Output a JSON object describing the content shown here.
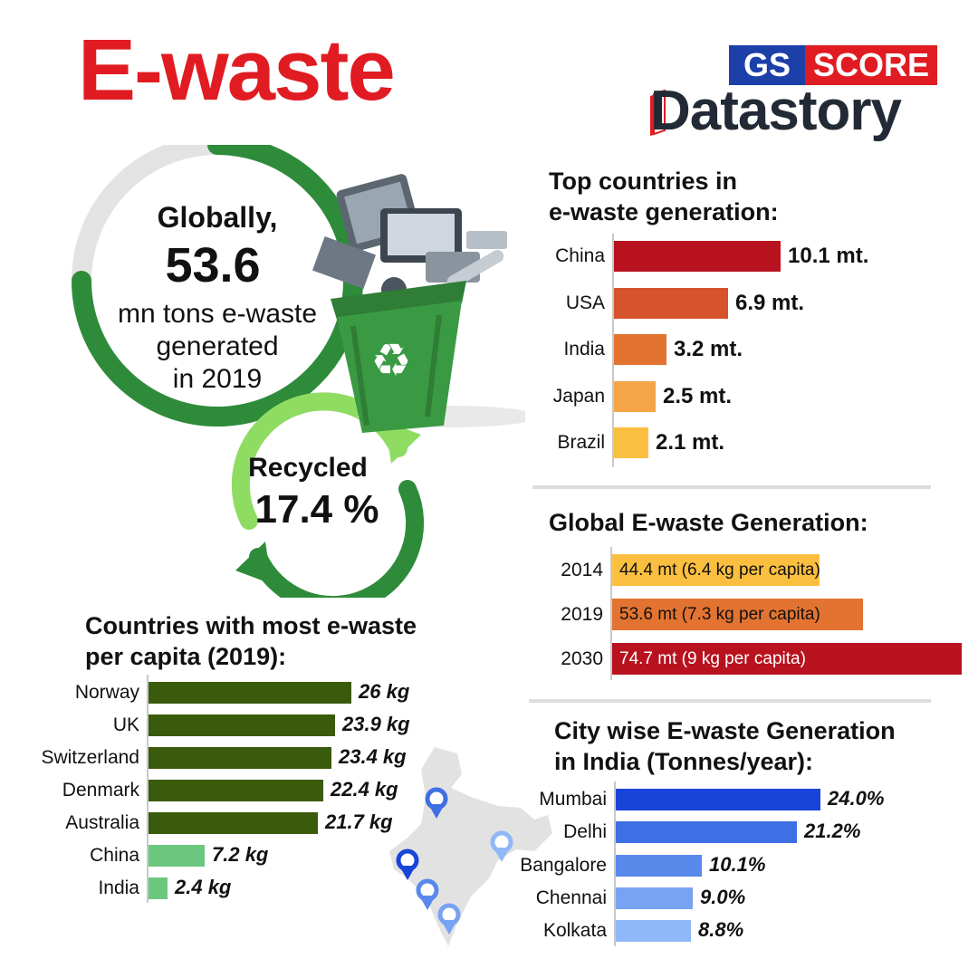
{
  "title": "E-waste",
  "logo": {
    "gs": "GS",
    "score": "SCORE",
    "datastory": "Datastory"
  },
  "colors": {
    "title_red": "#e11b22",
    "green_dark": "#2e8b3a",
    "green_light": "#8fdc63",
    "bin_green": "#3a9a43"
  },
  "global_summary": {
    "line_globally": "Globally,",
    "total": "53.6",
    "line_1": "mn tons e-waste",
    "line_2": "generated",
    "line_3": "in 2019",
    "recycled_label": "Recycled",
    "recycled_value": "17.4 %",
    "recycled_share": 0.174
  },
  "chart_data": [
    {
      "id": "top_countries",
      "type": "bar",
      "orientation": "horizontal",
      "title_line1": "Top countries in",
      "title_line2": "e-waste generation:",
      "categories": [
        "China",
        "USA",
        "India",
        "Japan",
        "Brazil"
      ],
      "values": [
        10.1,
        6.9,
        3.2,
        2.5,
        2.1
      ],
      "value_labels": [
        "10.1 mt.",
        "6.9 mt.",
        "3.2 mt.",
        "2.5 mt.",
        "2.1 mt."
      ],
      "colors": [
        "#b8121f",
        "#d6532c",
        "#e37330",
        "#f3a548",
        "#fbbf3f"
      ]
    },
    {
      "id": "global_generation",
      "type": "bar",
      "orientation": "horizontal",
      "title": "Global E-waste Generation:",
      "categories": [
        "2014",
        "2019",
        "2030"
      ],
      "values": [
        44.4,
        53.6,
        74.7
      ],
      "value_labels": [
        "44.4 mt (6.4 kg per capita)",
        "53.6 mt (7.3 kg per capita)",
        "74.7 mt (9 kg per capita)"
      ],
      "colors": [
        "#fbbf3f",
        "#e37330",
        "#b8121f"
      ]
    },
    {
      "id": "per_capita",
      "type": "bar",
      "orientation": "horizontal",
      "title_line1": "Countries with most e-waste",
      "title_line2": "per capita (2019):",
      "categories": [
        "Norway",
        "UK",
        "Switzerland",
        "Denmark",
        "Australia",
        "China",
        "India"
      ],
      "values": [
        26,
        23.9,
        23.4,
        22.4,
        21.7,
        7.2,
        2.4
      ],
      "value_labels": [
        "26 kg",
        "23.9 kg",
        "23.4 kg",
        "22.4 kg",
        "21.7 kg",
        "7.2 kg",
        "2.4 kg"
      ],
      "colors": [
        "#3a5a0c",
        "#3a5a0c",
        "#3a5a0c",
        "#3a5a0c",
        "#3a5a0c",
        "#6cc77e",
        "#6cc77e"
      ]
    },
    {
      "id": "city_wise",
      "type": "bar",
      "orientation": "horizontal",
      "title_line1": "City wise E-waste Generation",
      "title_line2": "in India (Tonnes/year):",
      "categories": [
        "Mumbai",
        "Delhi",
        "Bangalore",
        "Chennai",
        "Kolkata"
      ],
      "values": [
        24.0,
        21.2,
        10.1,
        9.0,
        8.8
      ],
      "value_labels": [
        "24.0%",
        "21.2%",
        "10.1%",
        "9.0%",
        "8.8%"
      ],
      "colors": [
        "#1845d8",
        "#3f6fe4",
        "#5a89ec",
        "#78a3f2",
        "#8fb8f8"
      ]
    }
  ]
}
